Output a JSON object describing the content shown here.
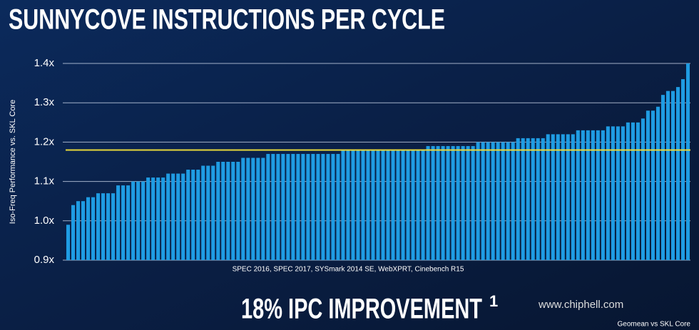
{
  "chart_data": {
    "type": "bar",
    "title": "SUNNYCOVE INSTRUCTIONS PER CYCLE",
    "y_label": "Iso-Freq Performance vs. SKL Core",
    "x_label": "SPEC 2016, SPEC 2017, SYSmark 2014 SE, WebXPRT, Cinebench R15",
    "headline": "18% IPC IMPROVEMENT",
    "headline_note": "1",
    "footnote": "Geomean vs SKL Core",
    "watermark": "www.chiphell.com",
    "color": "#1f9ce3",
    "reference_line": 1.18,
    "reference_color": "#e8d93a",
    "ylim": [
      0.9,
      1.4
    ],
    "yticks": [
      {
        "value": 0.9,
        "label": "0.9x"
      },
      {
        "value": 1.0,
        "label": "1.0x"
      },
      {
        "value": 1.1,
        "label": "1.1x"
      },
      {
        "value": 1.2,
        "label": "1.2x"
      },
      {
        "value": 1.3,
        "label": "1.3x"
      },
      {
        "value": 1.4,
        "label": "1.4x"
      }
    ],
    "grid": true,
    "values": [
      0.99,
      1.04,
      1.05,
      1.05,
      1.06,
      1.06,
      1.07,
      1.07,
      1.07,
      1.07,
      1.09,
      1.09,
      1.09,
      1.1,
      1.1,
      1.1,
      1.11,
      1.11,
      1.11,
      1.11,
      1.12,
      1.12,
      1.12,
      1.12,
      1.13,
      1.13,
      1.13,
      1.14,
      1.14,
      1.14,
      1.15,
      1.15,
      1.15,
      1.15,
      1.15,
      1.16,
      1.16,
      1.16,
      1.16,
      1.16,
      1.17,
      1.17,
      1.17,
      1.17,
      1.17,
      1.17,
      1.17,
      1.17,
      1.17,
      1.17,
      1.17,
      1.17,
      1.17,
      1.17,
      1.17,
      1.18,
      1.18,
      1.18,
      1.18,
      1.18,
      1.18,
      1.18,
      1.18,
      1.18,
      1.18,
      1.18,
      1.18,
      1.18,
      1.18,
      1.18,
      1.18,
      1.18,
      1.19,
      1.19,
      1.19,
      1.19,
      1.19,
      1.19,
      1.19,
      1.19,
      1.19,
      1.19,
      1.2,
      1.2,
      1.2,
      1.2,
      1.2,
      1.2,
      1.2,
      1.2,
      1.21,
      1.21,
      1.21,
      1.21,
      1.21,
      1.21,
      1.22,
      1.22,
      1.22,
      1.22,
      1.22,
      1.22,
      1.23,
      1.23,
      1.23,
      1.23,
      1.23,
      1.23,
      1.24,
      1.24,
      1.24,
      1.24,
      1.25,
      1.25,
      1.25,
      1.26,
      1.28,
      1.28,
      1.29,
      1.32,
      1.33,
      1.33,
      1.34,
      1.36,
      1.4
    ]
  }
}
